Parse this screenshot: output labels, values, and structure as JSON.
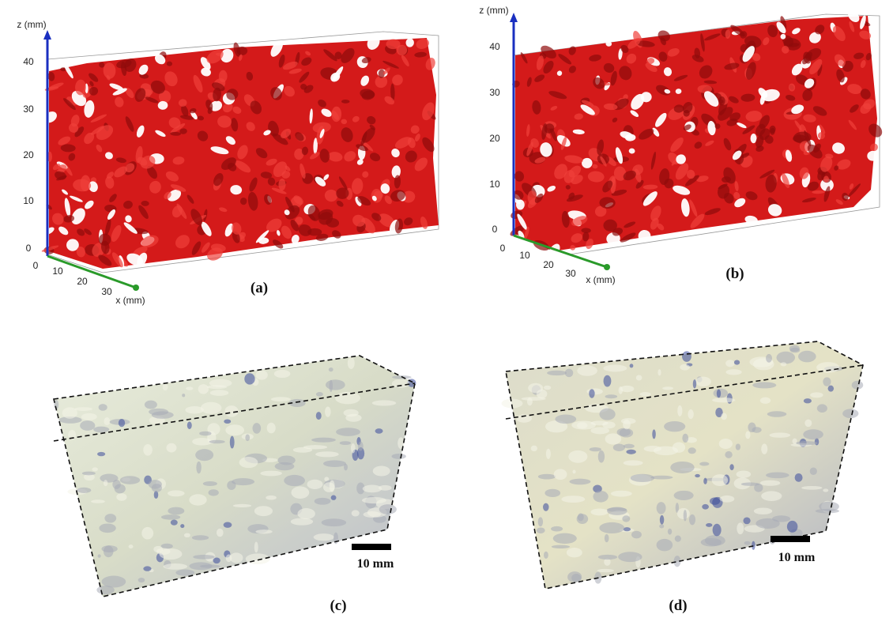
{
  "panels": [
    {
      "label": "(a)",
      "z_axis_label": "z (mm)",
      "z_ticks": [
        "40",
        "30",
        "20",
        "10",
        "0"
      ],
      "x_axis_label": "x (mm)",
      "x_ticks": [
        "0",
        "10",
        "20",
        "30"
      ]
    },
    {
      "label": "(b)",
      "z_axis_label": "z (mm)",
      "z_ticks": [
        "40",
        "30",
        "20",
        "10",
        "0"
      ],
      "x_axis_label": "x (mm)",
      "x_ticks": [
        "0",
        "10",
        "20",
        "30"
      ]
    },
    {
      "label": "(c)",
      "scale_bar": "10 mm"
    },
    {
      "label": "(d)",
      "scale_bar": "10 mm"
    }
  ]
}
